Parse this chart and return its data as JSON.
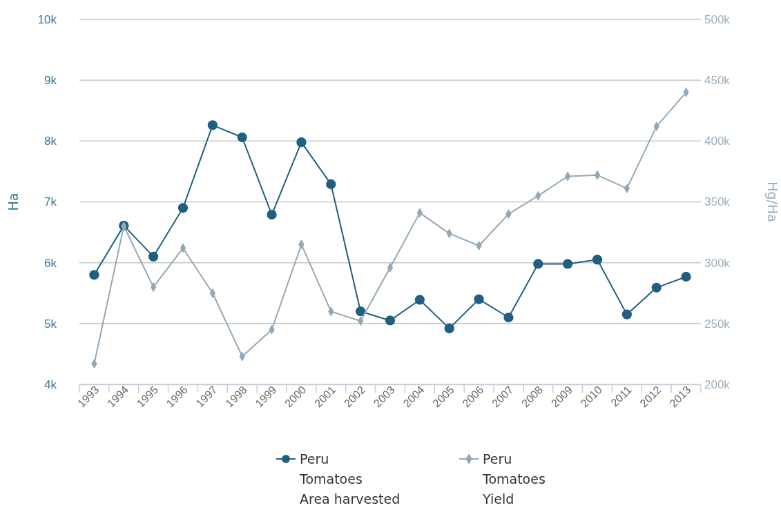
{
  "chart_data": {
    "type": "line",
    "ylabel": "Ha",
    "y2label": "Hg/Ha",
    "categories": [
      "1993",
      "1994",
      "1995",
      "1996",
      "1997",
      "1998",
      "1999",
      "2000",
      "2001",
      "2002",
      "2003",
      "2004",
      "2005",
      "2006",
      "2007",
      "2008",
      "2009",
      "2010",
      "2011",
      "2012",
      "2013"
    ],
    "series": [
      {
        "name": "Peru\nTomatoes\nArea harvested",
        "color": "#1f5f7f",
        "marker": "circle",
        "values": [
          5800,
          6610,
          6100,
          6900,
          8260,
          8060,
          6790,
          7980,
          7290,
          5200,
          5050,
          5390,
          4920,
          5400,
          5100,
          5980,
          5980,
          6050,
          5150,
          5590,
          5770
        ]
      },
      {
        "name": "Peru\nTomatoes\nYield",
        "color": "#93a8b7",
        "marker": "diamond",
        "axis": "y2",
        "values": [
          217000,
          330000,
          280000,
          312000,
          275000,
          223000,
          245000,
          315000,
          260000,
          252000,
          296000,
          341000,
          324000,
          314000,
          340000,
          355000,
          371000,
          372000,
          361000,
          412000,
          440000
        ]
      }
    ],
    "ylim": [
      4000,
      10000
    ],
    "yticks": [
      {
        "value": 4000,
        "label": "4k"
      },
      {
        "value": 5000,
        "label": "5k"
      },
      {
        "value": 6000,
        "label": "6k"
      },
      {
        "value": 7000,
        "label": "7k"
      },
      {
        "value": 8000,
        "label": "8k"
      },
      {
        "value": 9000,
        "label": "9k"
      },
      {
        "value": 10000,
        "label": "10k"
      }
    ],
    "y2lim": [
      200000,
      500000
    ],
    "y2ticks": [
      {
        "value": 200000,
        "label": "200k"
      },
      {
        "value": 250000,
        "label": "250k"
      },
      {
        "value": 300000,
        "label": "300k"
      },
      {
        "value": 350000,
        "label": "350k"
      },
      {
        "value": 400000,
        "label": "400k"
      },
      {
        "value": 450000,
        "label": "450k"
      },
      {
        "value": 500000,
        "label": "500k"
      }
    ],
    "grid": "y",
    "legend": "bottom"
  }
}
